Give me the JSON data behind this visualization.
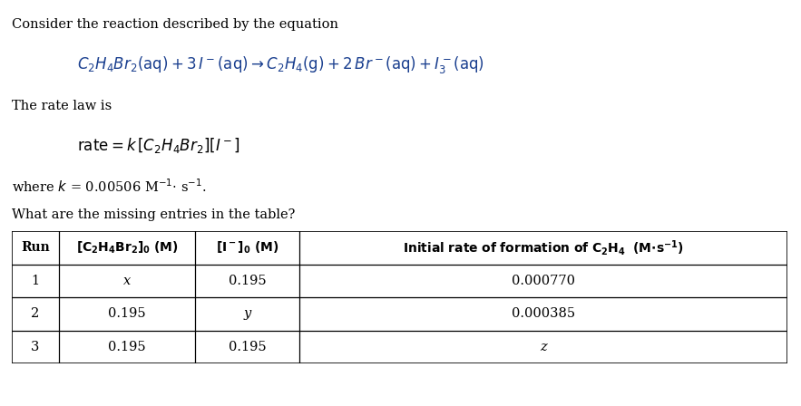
{
  "bg_color": "#ffffff",
  "text_color": "#000000",
  "blue_color": "#1a3f8f",
  "title_line1": "Consider the reaction described by the equation",
  "rate_law_label": "The rate law is",
  "k_line_pre": "where ",
  "k_value": "k",
  "k_line_post": " = 0.00506 M",
  "question": "What are the missing entries in the table?",
  "table_data": [
    [
      "1",
      "x",
      "0.195",
      "0.000770"
    ],
    [
      "2",
      "0.195",
      "y",
      "0.000385"
    ],
    [
      "3",
      "0.195",
      "0.195",
      "z"
    ]
  ]
}
